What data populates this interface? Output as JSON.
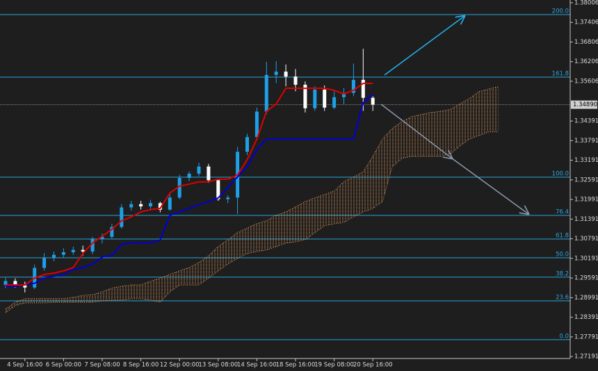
{
  "chart_data": {
    "type": "candlestick",
    "categories": [
      null,
      null,
      "4 Sep 16:00",
      null,
      null,
      null,
      "6 Sep 00:00",
      null,
      null,
      null,
      "7 Sep 08:00",
      null,
      null,
      null,
      "8 Sep 16:00",
      null,
      null,
      null,
      "12 Sep 00:00",
      null,
      null,
      null,
      "13 Sep 08:00",
      null,
      null,
      null,
      "14 Sep 16:00",
      null,
      null,
      null,
      "18 Sep 16:00",
      null,
      null,
      null,
      "19 Sep 08:00",
      null,
      null,
      null,
      "20 Sep 16:00",
      null,
      null,
      null,
      null,
      null,
      null,
      null,
      null,
      null,
      null,
      null,
      null,
      null
    ],
    "open": [
      1.2938,
      1.295,
      1.2938,
      1.293,
      1.299,
      1.3022,
      1.303,
      1.3038,
      1.3045,
      1.304,
      1.3078,
      1.3085,
      1.3115,
      1.3175,
      1.3185,
      1.3178,
      1.3188,
      1.3168,
      1.3205,
      1.3265,
      1.3278,
      1.33,
      1.3258,
      1.32,
      1.3205,
      1.3345,
      1.339,
      1.3468,
      1.358,
      1.359,
      1.3575,
      1.355,
      1.3478,
      1.3535,
      1.348,
      1.3512,
      1.3525,
      1.3565,
      1.351,
      null,
      null,
      null,
      null,
      null,
      null,
      null,
      null,
      null,
      null,
      null,
      null,
      null
    ],
    "high": [
      1.296,
      1.2958,
      1.2948,
      1.3,
      1.3035,
      1.304,
      1.305,
      1.3055,
      1.3058,
      1.3085,
      1.3095,
      1.3125,
      1.3185,
      1.3195,
      1.3195,
      1.3198,
      1.3192,
      1.3215,
      1.3275,
      1.3285,
      1.3312,
      1.3308,
      1.3262,
      1.3212,
      1.336,
      1.34,
      1.348,
      1.362,
      1.3622,
      1.3612,
      1.3598,
      1.356,
      1.3545,
      1.3548,
      1.353,
      1.354,
      1.3615,
      1.366,
      1.3515,
      null,
      null,
      null,
      null,
      null,
      null,
      null,
      null,
      null,
      null,
      null,
      null,
      null
    ],
    "low": [
      1.2928,
      1.293,
      1.2915,
      1.2925,
      1.2982,
      1.301,
      1.302,
      1.303,
      1.3028,
      1.3032,
      1.3065,
      1.308,
      1.311,
      1.3165,
      1.3168,
      1.317,
      1.316,
      1.3165,
      1.32,
      1.3255,
      1.327,
      1.325,
      1.3195,
      1.3188,
      1.3155,
      1.3335,
      1.338,
      1.346,
      1.3555,
      1.3545,
      1.353,
      1.3465,
      1.347,
      1.347,
      1.3475,
      1.349,
      1.3515,
      1.347,
      1.347,
      null,
      null,
      null,
      null,
      null,
      null,
      null,
      null,
      null,
      null,
      null,
      null,
      null
    ],
    "close": [
      1.295,
      1.2938,
      1.293,
      1.299,
      1.3022,
      1.303,
      1.3038,
      1.3045,
      1.304,
      1.3078,
      1.3085,
      1.3115,
      1.3175,
      1.3185,
      1.3178,
      1.3188,
      1.3168,
      1.3205,
      1.3265,
      1.3278,
      1.33,
      1.3258,
      1.32,
      1.3205,
      1.3345,
      1.339,
      1.3468,
      1.358,
      1.359,
      1.3575,
      1.355,
      1.3478,
      1.3535,
      1.348,
      1.3512,
      1.3525,
      1.3565,
      1.351,
      1.3489,
      null,
      null,
      null,
      null,
      null,
      null,
      null,
      null,
      null,
      null,
      null,
      null,
      null
    ],
    "up_color": "#1e9fe6",
    "down_color": "#ffffff",
    "tenkan": {
      "color": "#e00000",
      "values": [
        1.2938,
        1.2938,
        1.2938,
        1.2959,
        1.297,
        1.2974,
        1.2981,
        1.2991,
        1.3034,
        1.3066,
        1.3087,
        1.3108,
        1.3134,
        1.3146,
        1.3161,
        1.3168,
        1.3172,
        1.3219,
        1.324,
        1.3246,
        1.3253,
        1.3253,
        1.3261,
        1.3261,
        1.3274,
        1.3321,
        1.3384,
        1.3469,
        1.3491,
        1.3539,
        1.3539,
        1.3539,
        1.3539,
        1.3539,
        1.3533,
        1.3522,
        1.3533,
        1.3554,
        1.3554,
        null,
        null,
        null,
        null,
        null,
        null,
        null,
        null,
        null,
        null,
        null,
        null,
        null
      ]
    },
    "kijun": {
      "color": "#0000d8",
      "values": [
        1.2934,
        1.2934,
        1.2938,
        1.2943,
        1.2959,
        1.2964,
        1.297,
        1.2985,
        1.2991,
        1.3002,
        1.3023,
        1.3028,
        1.3062,
        1.3066,
        1.3066,
        1.3066,
        1.3076,
        1.3151,
        1.3161,
        1.3172,
        1.3183,
        1.3193,
        1.3204,
        1.3236,
        1.3268,
        1.3299,
        1.3352,
        1.3384,
        1.3384,
        1.3384,
        1.3384,
        1.3384,
        1.3384,
        1.3384,
        1.3384,
        1.3384,
        1.3384,
        1.3495,
        1.3522,
        null,
        null,
        null,
        null,
        null,
        null,
        null,
        null,
        null,
        null,
        null,
        null,
        null
      ]
    },
    "cloud": {
      "color": "#f4a460",
      "span_a": [
        1.2864,
        1.2885,
        1.2896,
        1.2896,
        1.2896,
        1.2896,
        1.2896,
        1.29,
        1.2906,
        1.2908,
        1.2917,
        1.2928,
        1.2934,
        1.2938,
        1.2938,
        1.2949,
        1.2959,
        1.297,
        1.2981,
        1.2991,
        1.3006,
        1.3027,
        1.3055,
        1.3076,
        1.3098,
        1.3112,
        1.3125,
        1.3134,
        1.3151,
        1.3161,
        1.3176,
        1.3193,
        1.3204,
        1.3214,
        1.3225,
        1.3253,
        1.3268,
        1.3283,
        1.3331,
        1.3384,
        1.3416,
        1.3437,
        1.3452,
        1.3459,
        1.3465,
        1.3469,
        1.3474,
        1.3491,
        1.3508,
        1.3529,
        1.3537,
        1.3544
      ],
      "span_b": [
        1.2853,
        1.2875,
        1.2883,
        1.2883,
        1.2883,
        1.2885,
        1.2885,
        1.2885,
        1.2885,
        1.2885,
        1.2889,
        1.2891,
        1.2891,
        1.2896,
        1.2896,
        1.2891,
        1.2885,
        1.2917,
        1.2938,
        1.2938,
        1.2938,
        1.2959,
        1.2981,
        1.3002,
        1.3019,
        1.3034,
        1.304,
        1.3045,
        1.3055,
        1.3066,
        1.307,
        1.3076,
        1.3098,
        1.3119,
        1.3125,
        1.3129,
        1.3146,
        1.3161,
        1.3172,
        1.3193,
        1.3299,
        1.3325,
        1.3331,
        1.3331,
        1.3331,
        1.3331,
        1.3338,
        1.3363,
        1.3384,
        1.3395,
        1.3406,
        1.3406
      ]
    },
    "fib_levels": {
      "color": "#2aa6de",
      "labels": [
        "200.0",
        "161.8",
        "100.0",
        "76.4",
        "61.8",
        "50.0",
        "38.2",
        "23.6",
        "0.0"
      ],
      "values": [
        1.37645,
        1.35733,
        1.32675,
        1.31506,
        1.30784,
        1.30211,
        1.29617,
        1.28894,
        1.27705
      ]
    },
    "current_price": {
      "value": 1.3489,
      "label": "1.34890"
    },
    "ylim": [
      1.2713,
      1.3809
    ],
    "yticks": [
      1.38006,
      1.37406,
      1.36806,
      1.36206,
      1.35606,
      1.34391,
      1.33791,
      1.33191,
      1.32591,
      1.31991,
      1.31391,
      1.30791,
      1.30191,
      1.29591,
      1.28991,
      1.28391,
      1.27791,
      1.27191
    ],
    "grid": false
  }
}
